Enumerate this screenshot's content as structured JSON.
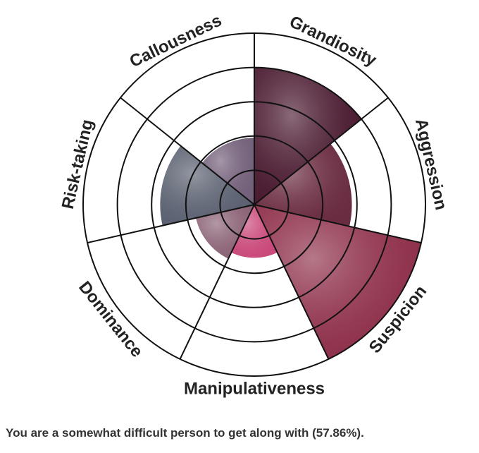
{
  "chart_data": {
    "type": "polar-area",
    "categories": [
      "Grandiosity",
      "Aggression",
      "Suspicion",
      "Manipulativeness",
      "Dominance",
      "Risk-taking",
      "Callousness"
    ],
    "values": [
      80,
      57,
      100,
      31,
      35,
      55,
      39
    ],
    "colors": [
      "#4a1a30",
      "#6a2c40",
      "#8e2f4a",
      "#c9497a",
      "#8a6275",
      "#5a6070",
      "#73607a"
    ],
    "ylim": [
      0,
      100
    ],
    "yticks": [
      20,
      40,
      60,
      80,
      100
    ],
    "grid": true
  },
  "result": "You are a somewhat difficult person to get along with (57.86%)."
}
